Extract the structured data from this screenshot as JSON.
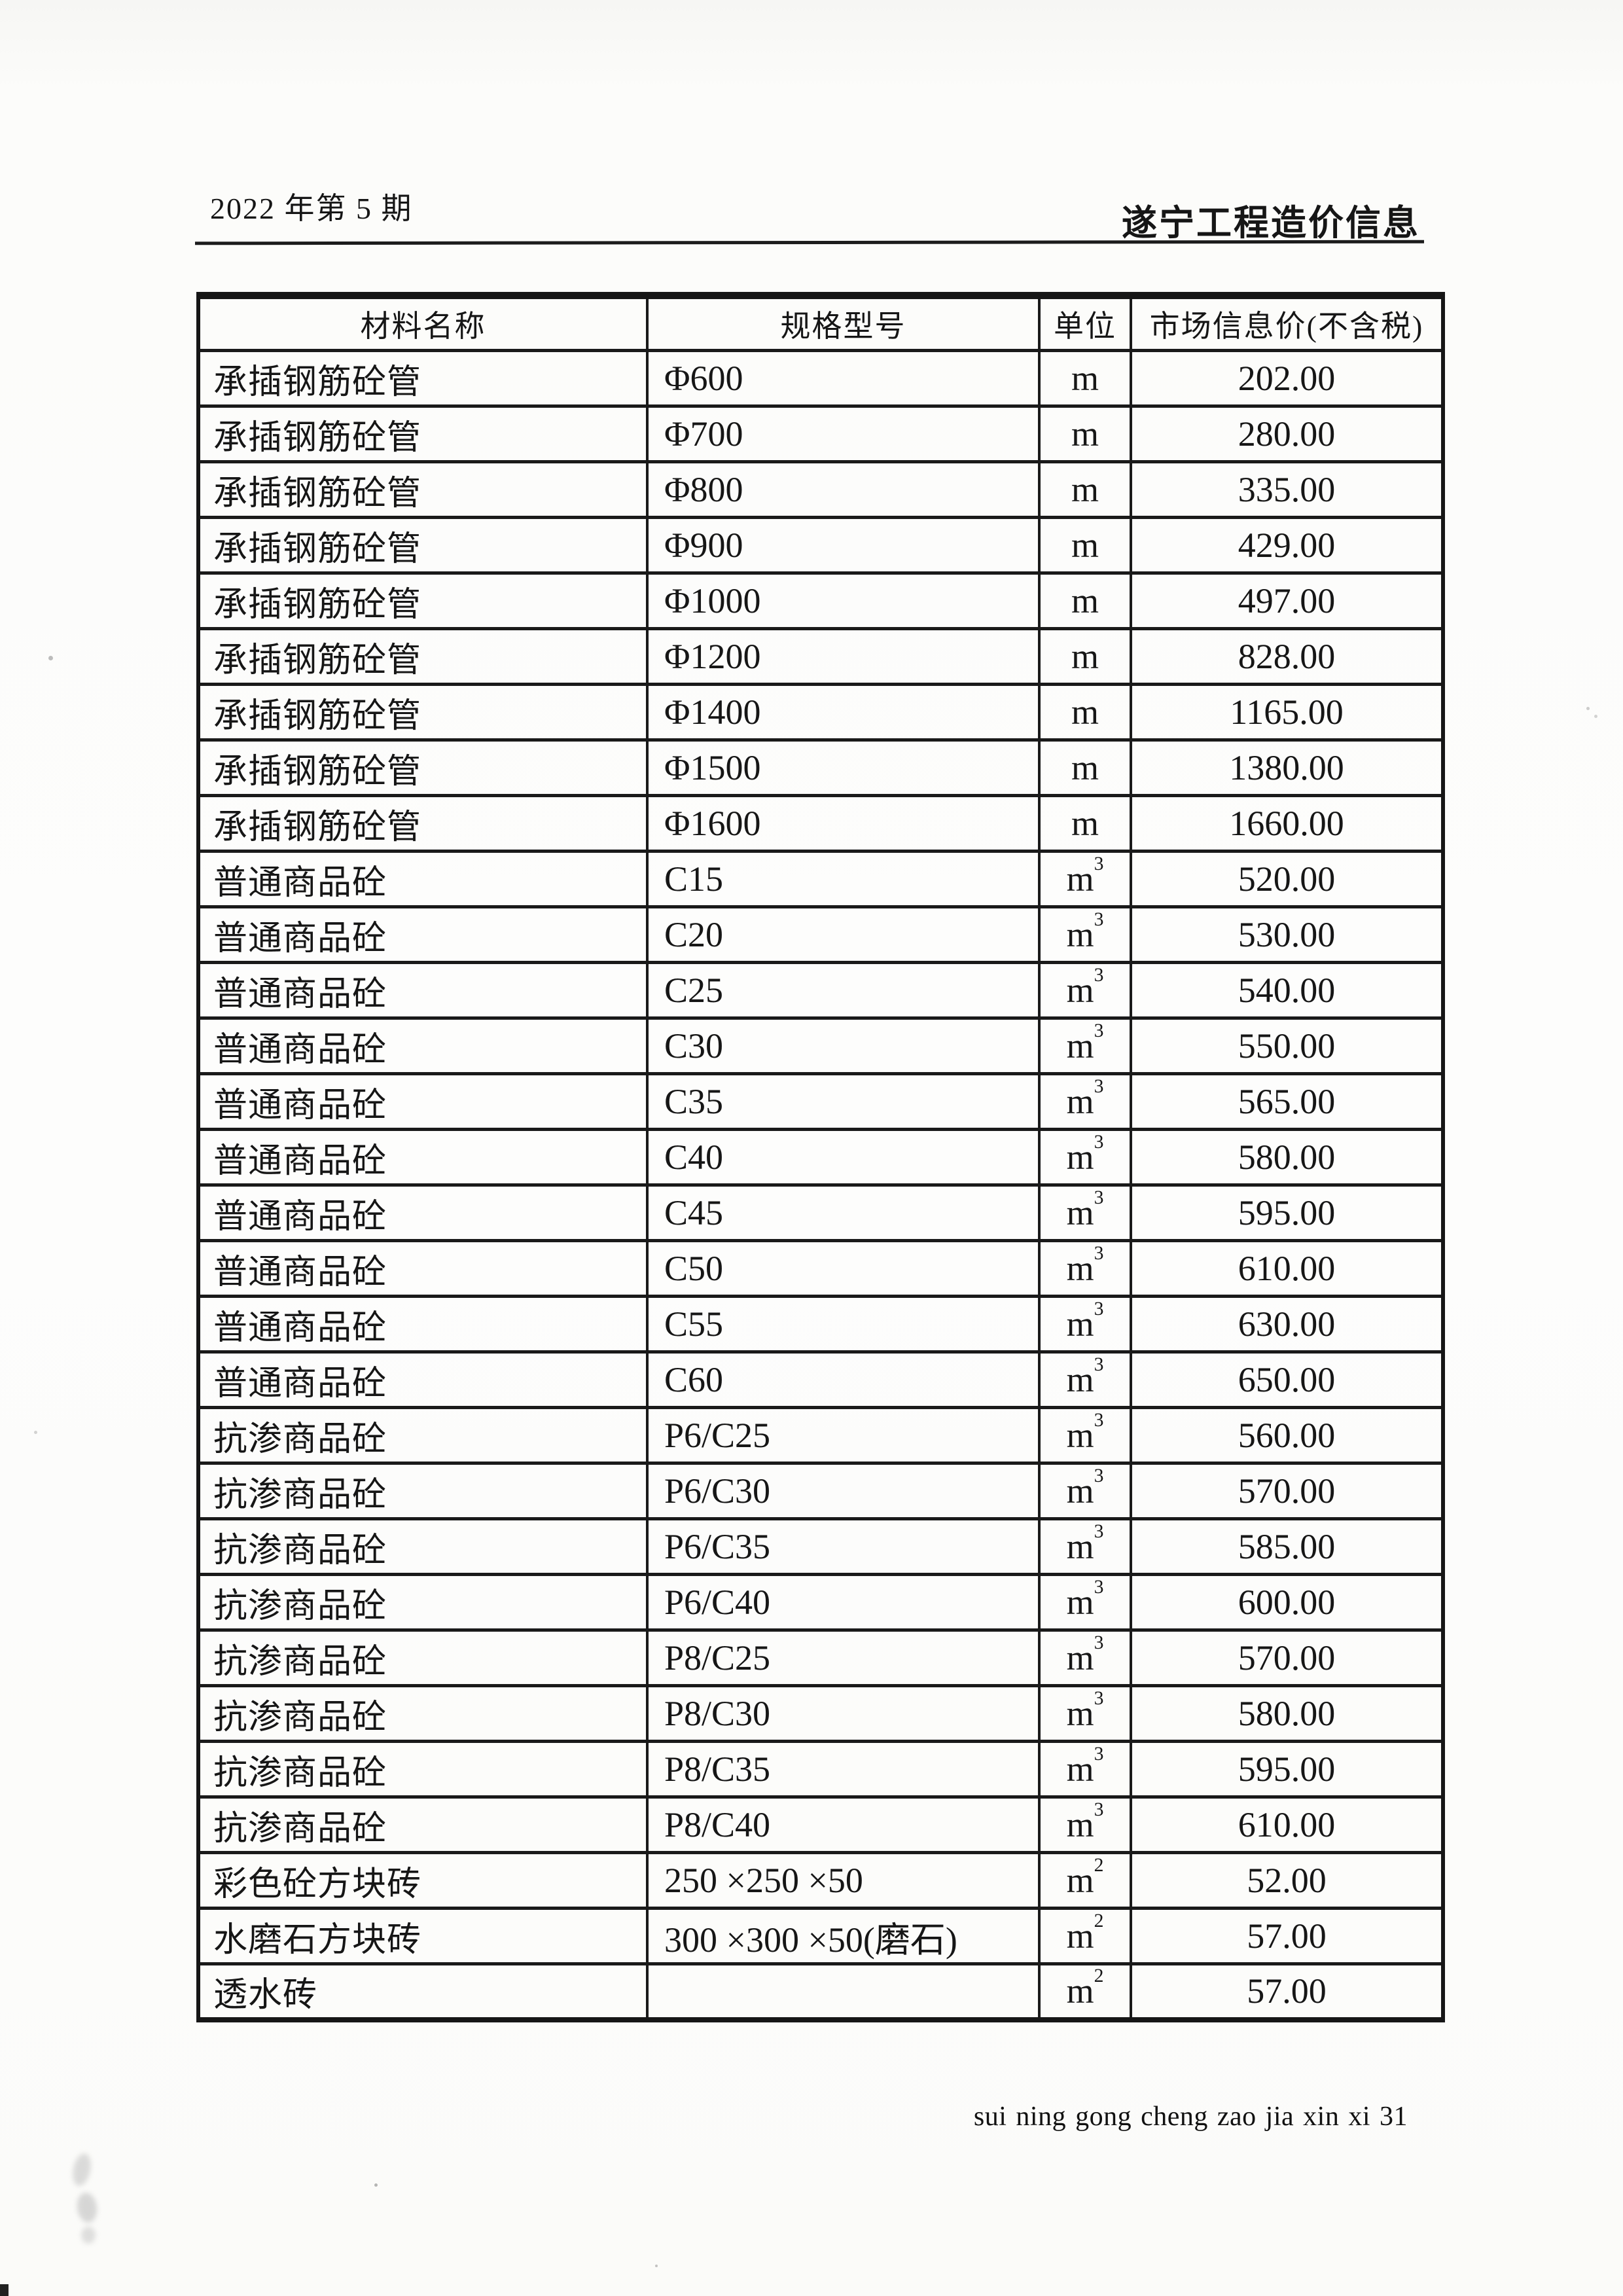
{
  "page": {
    "issue": "2022 年第 5 期",
    "journal": "遂宁工程造价信息",
    "footer": "sui ning gong cheng zao jia xin xi 31"
  },
  "table": {
    "headers": {
      "name": "材料名称",
      "spec": "规格型号",
      "unit": "单位",
      "price": "市场信息价(不含税)"
    },
    "rows": [
      {
        "name": "承插钢筋砼管",
        "spec": "Φ600",
        "unit_base": "m",
        "unit_exp": "",
        "price": "202.00"
      },
      {
        "name": "承插钢筋砼管",
        "spec": "Φ700",
        "unit_base": "m",
        "unit_exp": "",
        "price": "280.00"
      },
      {
        "name": "承插钢筋砼管",
        "spec": "Φ800",
        "unit_base": "m",
        "unit_exp": "",
        "price": "335.00"
      },
      {
        "name": "承插钢筋砼管",
        "spec": "Φ900",
        "unit_base": "m",
        "unit_exp": "",
        "price": "429.00"
      },
      {
        "name": "承插钢筋砼管",
        "spec": "Φ1000",
        "unit_base": "m",
        "unit_exp": "",
        "price": "497.00"
      },
      {
        "name": "承插钢筋砼管",
        "spec": "Φ1200",
        "unit_base": "m",
        "unit_exp": "",
        "price": "828.00"
      },
      {
        "name": "承插钢筋砼管",
        "spec": "Φ1400",
        "unit_base": "m",
        "unit_exp": "",
        "price": "1165.00"
      },
      {
        "name": "承插钢筋砼管",
        "spec": "Φ1500",
        "unit_base": "m",
        "unit_exp": "",
        "price": "1380.00"
      },
      {
        "name": "承插钢筋砼管",
        "spec": "Φ1600",
        "unit_base": "m",
        "unit_exp": "",
        "price": "1660.00"
      },
      {
        "name": "普通商品砼",
        "spec": "C15",
        "unit_base": "m",
        "unit_exp": "3",
        "price": "520.00"
      },
      {
        "name": "普通商品砼",
        "spec": "C20",
        "unit_base": "m",
        "unit_exp": "3",
        "price": "530.00"
      },
      {
        "name": "普通商品砼",
        "spec": "C25",
        "unit_base": "m",
        "unit_exp": "3",
        "price": "540.00"
      },
      {
        "name": "普通商品砼",
        "spec": "C30",
        "unit_base": "m",
        "unit_exp": "3",
        "price": "550.00"
      },
      {
        "name": "普通商品砼",
        "spec": "C35",
        "unit_base": "m",
        "unit_exp": "3",
        "price": "565.00"
      },
      {
        "name": "普通商品砼",
        "spec": "C40",
        "unit_base": "m",
        "unit_exp": "3",
        "price": "580.00"
      },
      {
        "name": "普通商品砼",
        "spec": "C45",
        "unit_base": "m",
        "unit_exp": "3",
        "price": "595.00"
      },
      {
        "name": "普通商品砼",
        "spec": "C50",
        "unit_base": "m",
        "unit_exp": "3",
        "price": "610.00"
      },
      {
        "name": "普通商品砼",
        "spec": "C55",
        "unit_base": "m",
        "unit_exp": "3",
        "price": "630.00"
      },
      {
        "name": "普通商品砼",
        "spec": "C60",
        "unit_base": "m",
        "unit_exp": "3",
        "price": "650.00"
      },
      {
        "name": "抗渗商品砼",
        "spec": "P6/C25",
        "unit_base": "m",
        "unit_exp": "3",
        "price": "560.00"
      },
      {
        "name": "抗渗商品砼",
        "spec": "P6/C30",
        "unit_base": "m",
        "unit_exp": "3",
        "price": "570.00"
      },
      {
        "name": "抗渗商品砼",
        "spec": "P6/C35",
        "unit_base": "m",
        "unit_exp": "3",
        "price": "585.00"
      },
      {
        "name": "抗渗商品砼",
        "spec": "P6/C40",
        "unit_base": "m",
        "unit_exp": "3",
        "price": "600.00"
      },
      {
        "name": "抗渗商品砼",
        "spec": "P8/C25",
        "unit_base": "m",
        "unit_exp": "3",
        "price": "570.00"
      },
      {
        "name": "抗渗商品砼",
        "spec": "P8/C30",
        "unit_base": "m",
        "unit_exp": "3",
        "price": "580.00"
      },
      {
        "name": "抗渗商品砼",
        "spec": "P8/C35",
        "unit_base": "m",
        "unit_exp": "3",
        "price": "595.00"
      },
      {
        "name": "抗渗商品砼",
        "spec": "P8/C40",
        "unit_base": "m",
        "unit_exp": "3",
        "price": "610.00"
      },
      {
        "name": "彩色砼方块砖",
        "spec": "250 ×250 ×50",
        "unit_base": "m",
        "unit_exp": "2",
        "price": "52.00"
      },
      {
        "name": "水磨石方块砖",
        "spec": "300 ×300 ×50(磨石)",
        "unit_base": "m",
        "unit_exp": "2",
        "price": "57.00"
      },
      {
        "name": "透水砖",
        "spec": "",
        "unit_base": "m",
        "unit_exp": "2",
        "price": "57.00"
      }
    ]
  }
}
